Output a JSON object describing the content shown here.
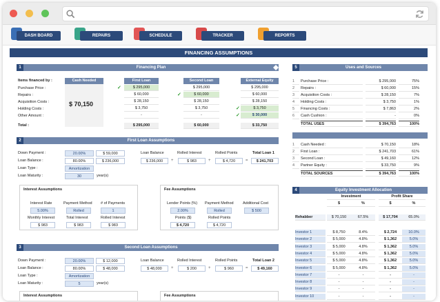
{
  "nav": {
    "items": [
      {
        "label": "DASH BOARD"
      },
      {
        "label": "REPAIRS"
      },
      {
        "label": "SCHEDULE"
      },
      {
        "label": "TRACKER"
      },
      {
        "label": "REPORTS"
      }
    ]
  },
  "page_title": "FINANCING ASSUMPTIONS",
  "financing_plan": {
    "number": "1",
    "title": "Financing Plan",
    "items_label": "Items financed by :",
    "cash_needed_label": "Cash Needed",
    "cash_needed_value": "$ 70,150",
    "columns": [
      "First Loan",
      "Second Loan",
      "External Equity"
    ],
    "rows": [
      {
        "label": "Purchase Price :",
        "first": "$ 295,000",
        "second": "$ 295,000",
        "external": "$ 295,000"
      },
      {
        "label": "Repairs :",
        "first": "$ 60,000",
        "second": "$ 60,000",
        "external": "$ 60,000"
      },
      {
        "label": "Acquisition Costs :",
        "first": "$ 28,150",
        "second": "$ 28,150",
        "external": "$ 28,150"
      },
      {
        "label": "Holding Costs :",
        "first": "$ 3,750",
        "second": "$ 3,750",
        "external": "$ 3,750"
      },
      {
        "label": "Other Amount :",
        "first": "-",
        "second": "-",
        "external": "$ 30,000"
      }
    ],
    "total_label": "Total :",
    "totals": {
      "first": "$ 295,000",
      "second": "$ 60,000",
      "external": "$ 33,750"
    }
  },
  "first_loan": {
    "number": "2",
    "title": "First Loan Assumptions",
    "down_payment_label": "Down Payment :",
    "down_payment_pct": "20.00%",
    "down_payment_amt": "$ 59,000",
    "loan_balance_label": "Loan Balance :",
    "loan_balance_pct": "80.00%",
    "loan_balance_amt": "$ 236,000",
    "loan_type_label": "Loan Type :",
    "loan_type": "Amortization",
    "loan_maturity_label": "Loan Maturity :",
    "loan_maturity": "30",
    "years": "year(s)",
    "sum_headers": [
      "Loan Balance",
      "Rolled Interest",
      "Rolled Points",
      "Total Loan 1"
    ],
    "sum_values": [
      "$ 236,000",
      "$ 983",
      "$ 4,720",
      "$ 241,703"
    ],
    "interest_title": "Interest Assumptions",
    "interest_headers": [
      "Interest Rate",
      "Payment Method",
      "# of Payments"
    ],
    "interest_values": [
      "5.00%",
      "Rolled",
      "1"
    ],
    "interest_headers2": [
      "Monthly Interest",
      "Total Interest",
      "Rolled Interest"
    ],
    "interest_values2": [
      "$ 983",
      "$ 983",
      "$ 983"
    ],
    "fee_title": "Fee Assumptions",
    "fee_headers": [
      "Lender Points (%)",
      "Payment Method",
      "Additional Cost"
    ],
    "fee_values": [
      "2.00%",
      "Rolled",
      "$ 500"
    ],
    "fee_headers2": [
      "Points ($)",
      "Rolled Points"
    ],
    "fee_values2": [
      "$ 4,720",
      "$ 4,720"
    ]
  },
  "second_loan": {
    "number": "3",
    "title": "Second Loan Assumptions",
    "down_payment_label": "Down Payment :",
    "down_payment_pct": "20.00%",
    "down_payment_amt": "$ 12,000",
    "loan_balance_label": "Loan Balance :",
    "loan_balance_pct": "80.00%",
    "loan_balance_amt": "$ 48,000",
    "loan_type_label": "Loan Type :",
    "loan_type": "Amortization",
    "loan_maturity_label": "Loan Maturity :",
    "loan_maturity": "5",
    "years": "year(s)",
    "sum_headers": [
      "Loan Balance",
      "Rolled Interest",
      "Rolled Points",
      "Total Loan 2"
    ],
    "sum_values": [
      "$ 48,000",
      "$ 200",
      "$ 960",
      "$ 49,160"
    ],
    "interest_title": "Interest Assumptions",
    "fee_title": "Fee Assumptions"
  },
  "uses_sources": {
    "number": "5",
    "title": "Uses and Sources",
    "uses": [
      {
        "n": "1",
        "label": "Purchase Price :",
        "value": "$ 295,000",
        "pct": "75%"
      },
      {
        "n": "2",
        "label": "Repairs :",
        "value": "$ 60,000",
        "pct": "15%"
      },
      {
        "n": "3",
        "label": "Acquisition Costs :",
        "value": "$ 28,150",
        "pct": "7%"
      },
      {
        "n": "4",
        "label": "Holding Costs :",
        "value": "$ 3,750",
        "pct": "1%"
      },
      {
        "n": "5",
        "label": "Financing Costs :",
        "value": "$ 7,863",
        "pct": "2%"
      },
      {
        "n": "6",
        "label": "Cash Cushion :",
        "value": "-",
        "pct": "0%"
      }
    ],
    "total_uses_label": "TOTAL USES",
    "total_uses": "$ 394,763",
    "total_uses_pct": "100%",
    "sources": [
      {
        "n": "1",
        "label": "Cash Needed :",
        "value": "$ 70,150",
        "pct": "18%"
      },
      {
        "n": "2",
        "label": "First Loan :",
        "value": "$ 241,703",
        "pct": "61%"
      },
      {
        "n": "3",
        "label": "Second Loan :",
        "value": "$ 49,160",
        "pct": "12%"
      },
      {
        "n": "4",
        "label": "Partner Equity :",
        "value": "$ 33,750",
        "pct": "9%"
      }
    ],
    "total_sources_label": "TOTAL SOURCES",
    "total_sources": "$ 394,763",
    "total_sources_pct": "100%"
  },
  "equity": {
    "number": "4",
    "title": "Equity Investment Allocation",
    "investment_label": "Investment",
    "profit_label": "Profit Share",
    "sub_headers": [
      "$",
      "%",
      "$",
      "%"
    ],
    "rehabber": {
      "label": "Rehabber",
      "inv": "$ 70,150",
      "inv_pct": "67.5%",
      "profit": "$ 17,704",
      "profit_pct": "65.0%"
    },
    "investors": [
      {
        "label": "Investor 1",
        "inv": "$ 8,750",
        "inv_pct": "8.4%",
        "profit": "$ 2,724",
        "profit_pct": "10.0%"
      },
      {
        "label": "Investor 2",
        "inv": "$ 5,000",
        "inv_pct": "4.8%",
        "profit": "$ 1,362",
        "profit_pct": "5.0%"
      },
      {
        "label": "Investor 3",
        "inv": "$ 5,000",
        "inv_pct": "4.8%",
        "profit": "$ 1,362",
        "profit_pct": "5.0%"
      },
      {
        "label": "Investor 4",
        "inv": "$ 5,000",
        "inv_pct": "4.8%",
        "profit": "$ 1,362",
        "profit_pct": "5.0%"
      },
      {
        "label": "Investor 5",
        "inv": "$ 5,000",
        "inv_pct": "4.8%",
        "profit": "$ 1,362",
        "profit_pct": "5.0%"
      },
      {
        "label": "Investor 6",
        "inv": "$ 5,000",
        "inv_pct": "4.8%",
        "profit": "$ 1,362",
        "profit_pct": "5.0%"
      },
      {
        "label": "Investor 7",
        "inv": "-",
        "inv_pct": "-",
        "profit": "-",
        "profit_pct": "-"
      },
      {
        "label": "Investor 8",
        "inv": "-",
        "inv_pct": "-",
        "profit": "-",
        "profit_pct": "-"
      },
      {
        "label": "Investor 9",
        "inv": "-",
        "inv_pct": "-",
        "profit": "-",
        "profit_pct": "-"
      },
      {
        "label": "Investor 10",
        "inv": "-",
        "inv_pct": "-",
        "profit": "-",
        "profit_pct": "-"
      }
    ]
  },
  "colors": {
    "accent": "#2c4a7a",
    "section": "#6f86ab",
    "input": "#dbe6f5",
    "highlight": "#d8ecd0"
  }
}
